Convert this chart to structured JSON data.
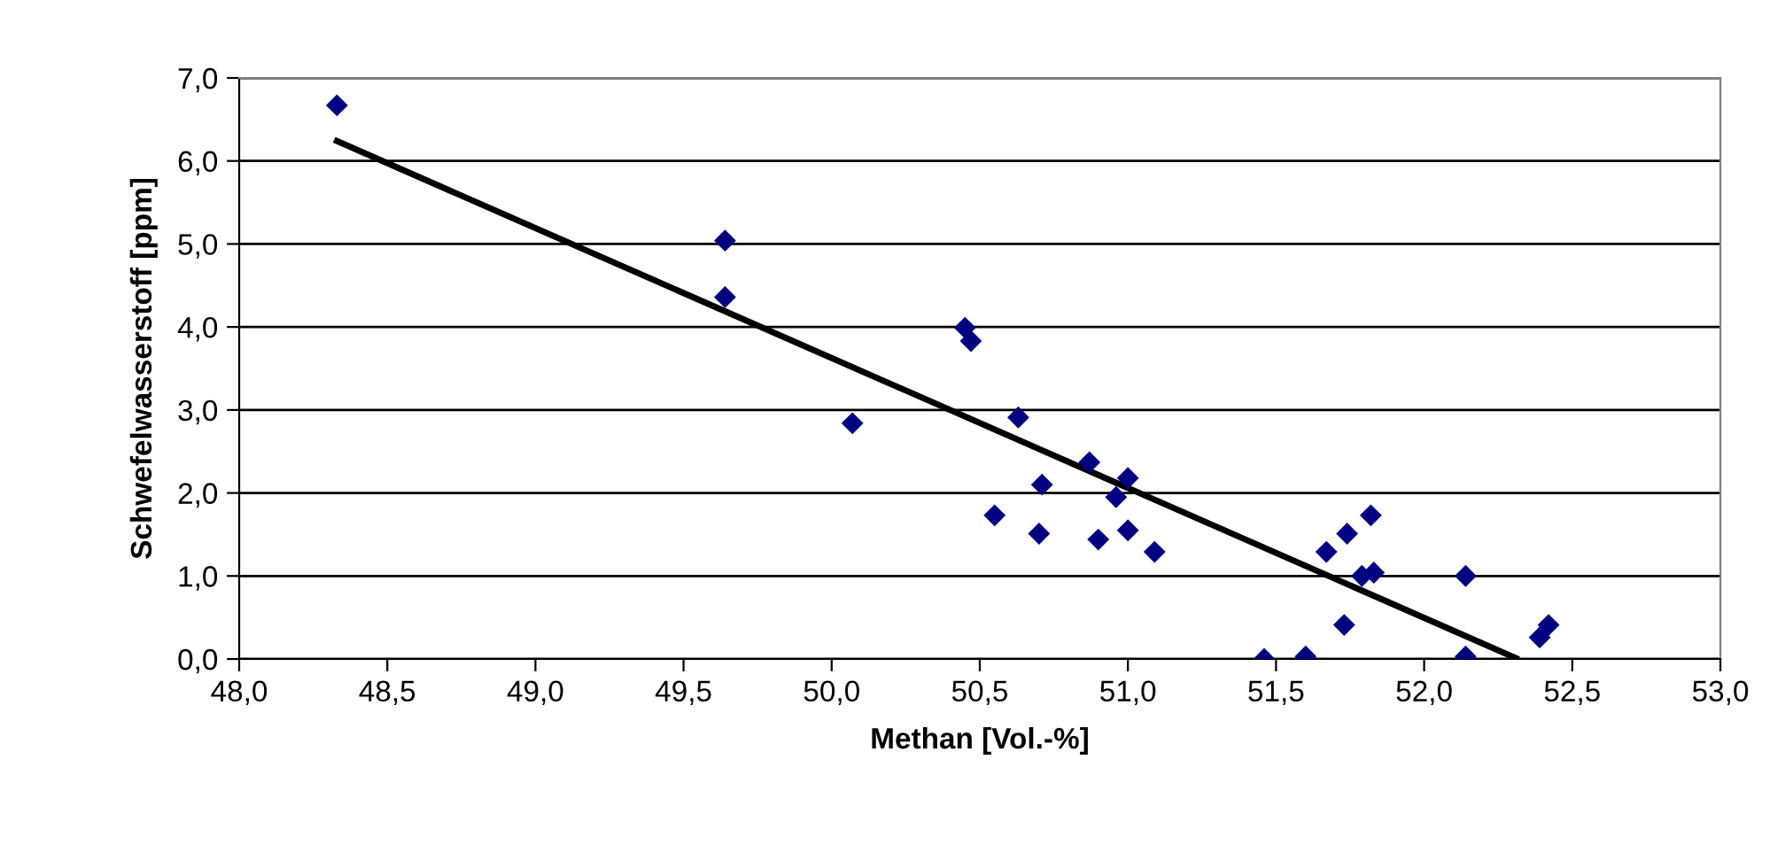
{
  "chart_data": {
    "type": "scatter",
    "xlabel": "Methan [Vol.-%]",
    "ylabel": "Schwefelwasserstoff [ppm]",
    "xlim": [
      48.0,
      53.0
    ],
    "ylim": [
      0.0,
      7.0
    ],
    "xticks": [
      {
        "value": 48.0,
        "label": "48,0"
      },
      {
        "value": 48.5,
        "label": "48,5"
      },
      {
        "value": 49.0,
        "label": "49,0"
      },
      {
        "value": 49.5,
        "label": "49,5"
      },
      {
        "value": 50.0,
        "label": "50,0"
      },
      {
        "value": 50.5,
        "label": "50,5"
      },
      {
        "value": 51.0,
        "label": "51,0"
      },
      {
        "value": 51.5,
        "label": "51,5"
      },
      {
        "value": 52.0,
        "label": "52,0"
      },
      {
        "value": 52.5,
        "label": "52,5"
      },
      {
        "value": 53.0,
        "label": "53,0"
      }
    ],
    "yticks": [
      {
        "value": 0.0,
        "label": "0,0"
      },
      {
        "value": 1.0,
        "label": "1,0"
      },
      {
        "value": 2.0,
        "label": "2,0"
      },
      {
        "value": 3.0,
        "label": "3,0"
      },
      {
        "value": 4.0,
        "label": "4,0"
      },
      {
        "value": 5.0,
        "label": "5,0"
      },
      {
        "value": 6.0,
        "label": "6,0"
      },
      {
        "value": 7.0,
        "label": "7,0"
      }
    ],
    "grid": "y",
    "marker": "diamond",
    "series": [
      {
        "type": "scatter",
        "color": "#000080",
        "x": [
          48.33,
          49.64,
          49.64,
          50.07,
          50.45,
          50.47,
          50.63,
          50.55,
          50.71,
          50.7,
          50.87,
          50.9,
          50.96,
          51.0,
          51.0,
          51.09,
          51.46,
          51.6,
          51.67,
          51.74,
          51.82,
          51.73,
          51.79,
          51.83,
          52.14,
          52.14,
          52.39,
          52.42
        ],
        "values": [
          6.67,
          5.04,
          4.36,
          2.84,
          3.99,
          3.83,
          2.91,
          1.73,
          2.1,
          1.51,
          2.37,
          1.44,
          1.95,
          2.18,
          1.55,
          1.29,
          0.0,
          0.03,
          1.29,
          1.51,
          1.73,
          0.41,
          1.0,
          1.04,
          1.0,
          0.03,
          0.26,
          0.41
        ]
      },
      {
        "type": "line",
        "color": "#000000",
        "marker": "none",
        "x": [
          48.33,
          52.31
        ],
        "values": [
          6.24,
          0.01
        ]
      }
    ]
  }
}
